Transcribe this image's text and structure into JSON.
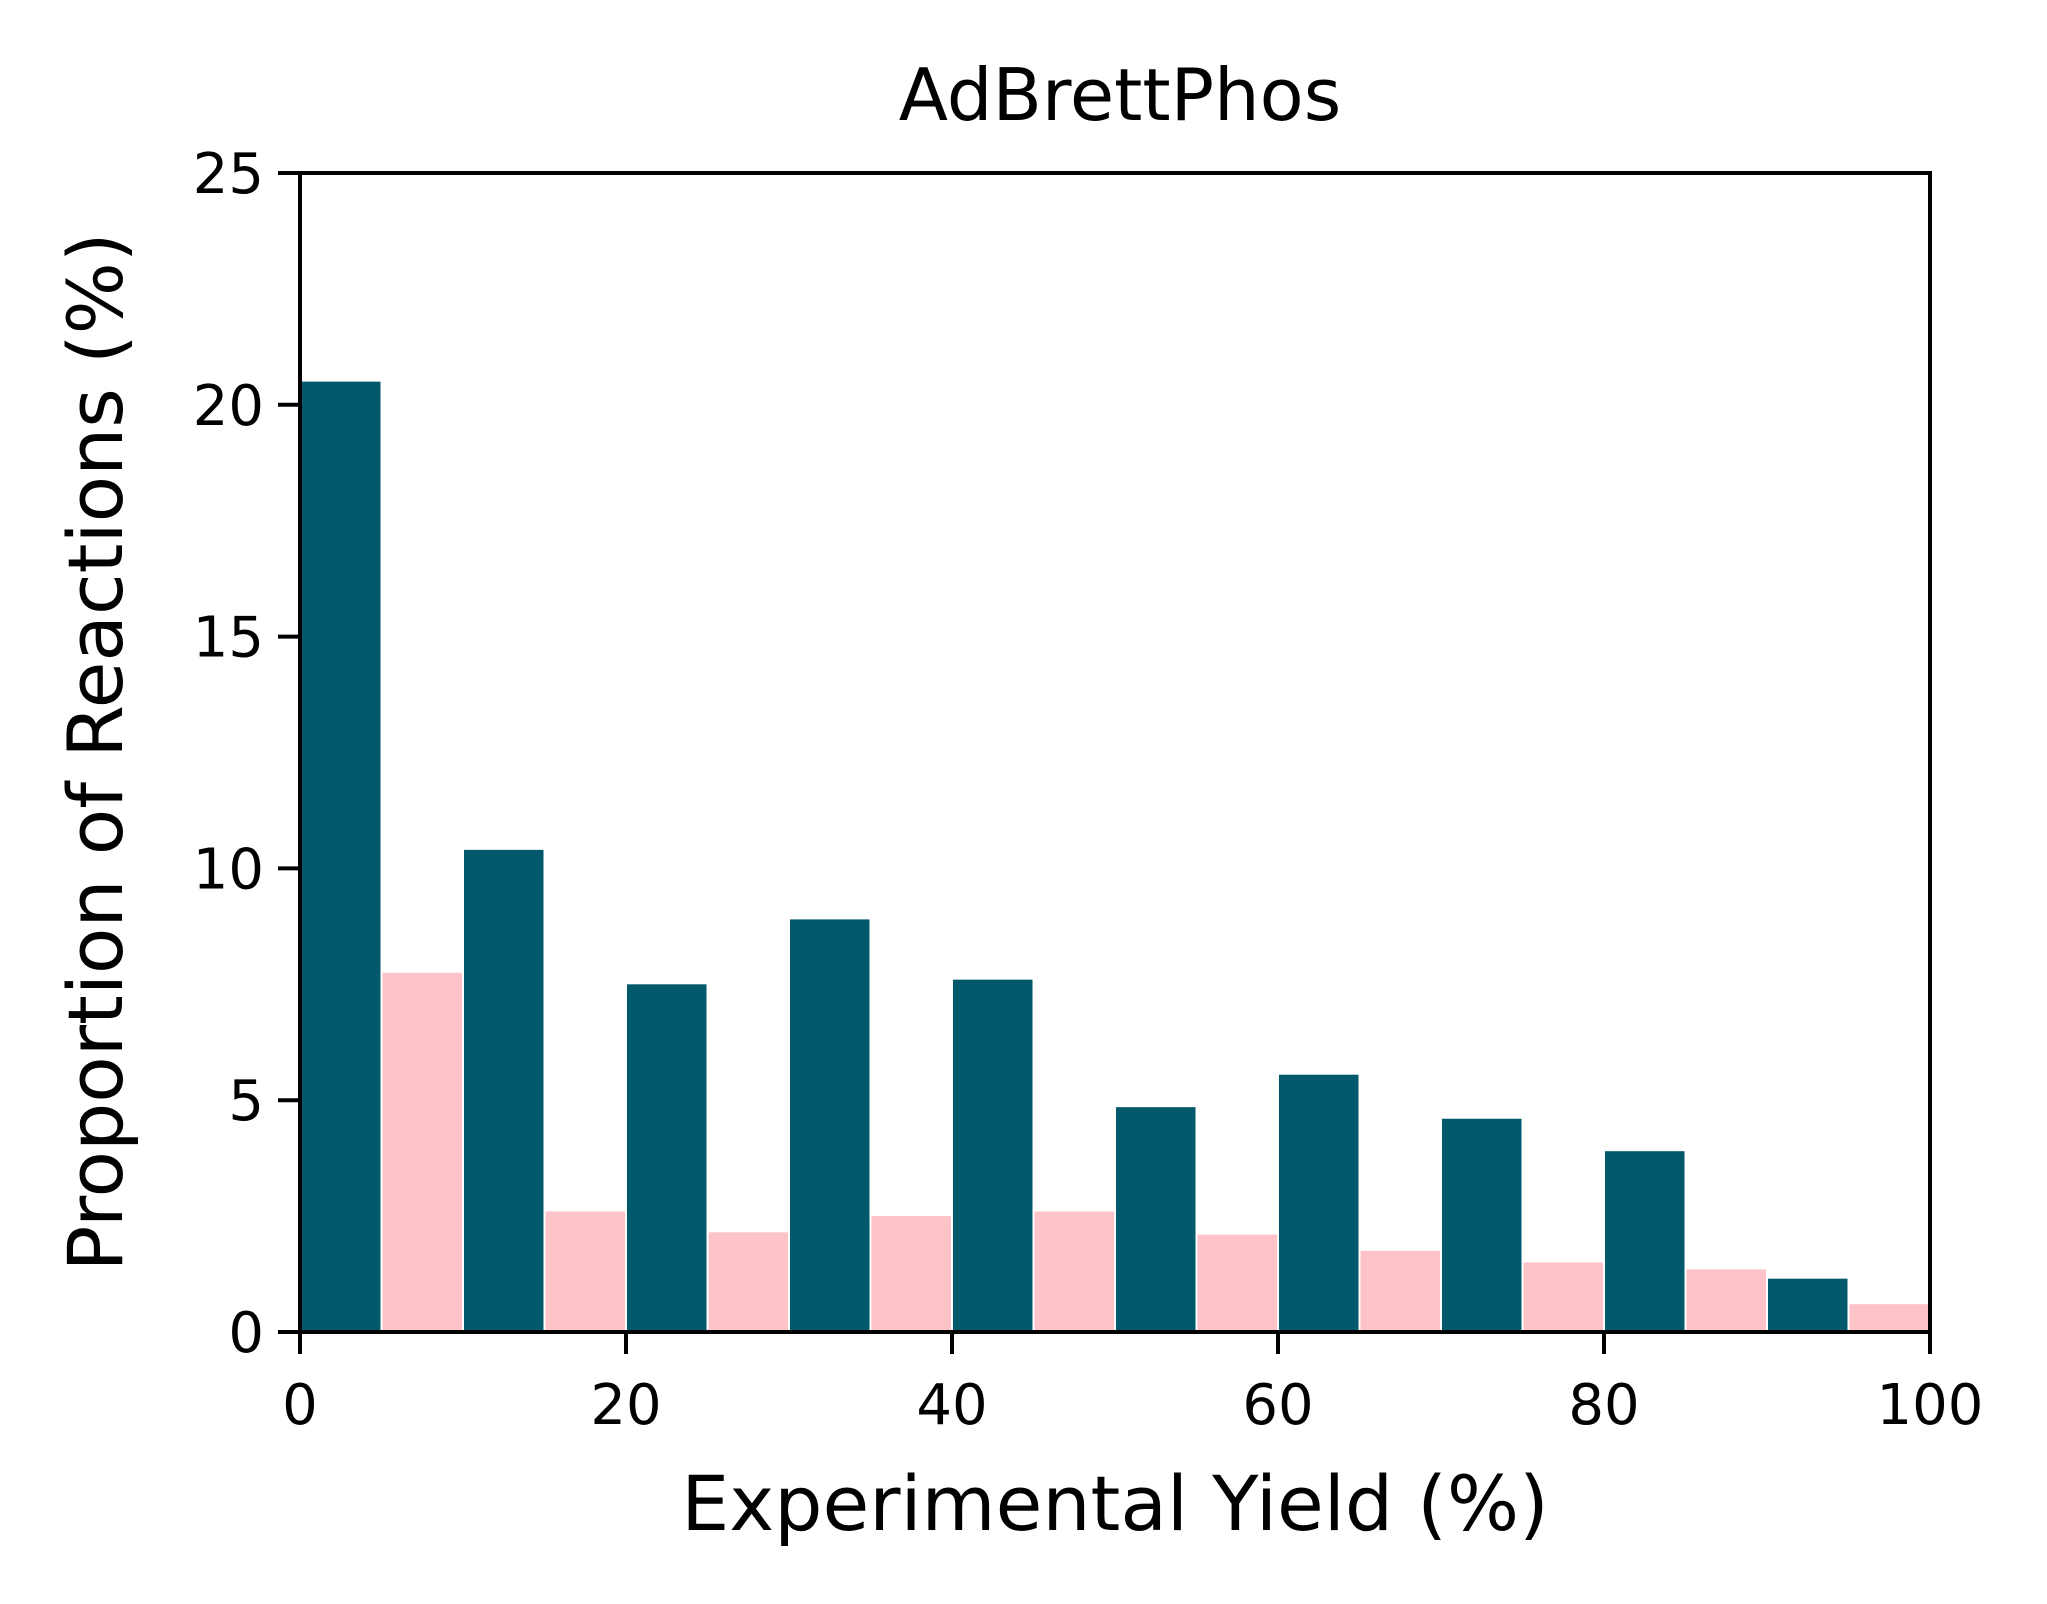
{
  "chart_data": {
    "type": "bar",
    "title": "AdBrettPhos",
    "xlabel": "Experimental Yield (%)",
    "ylabel": "Proportion of Reactions (%)",
    "xlim": [
      0,
      100
    ],
    "ylim": [
      0,
      25
    ],
    "xticks": [
      0,
      20,
      40,
      60,
      80,
      100
    ],
    "yticks": [
      0,
      5,
      10,
      15,
      20,
      25
    ],
    "grid": false,
    "bin_edges": [
      0,
      10,
      20,
      30,
      40,
      50,
      60,
      70,
      80,
      90,
      100
    ],
    "series": [
      {
        "color": "#02596b",
        "values": [
          20.5,
          10.4,
          7.5,
          8.9,
          7.6,
          4.85,
          5.55,
          4.6,
          3.9,
          1.15
        ]
      },
      {
        "color": "#fec3c8",
        "values": [
          7.75,
          2.6,
          2.15,
          2.5,
          2.6,
          2.1,
          1.75,
          1.5,
          1.35,
          0.6
        ]
      }
    ]
  }
}
